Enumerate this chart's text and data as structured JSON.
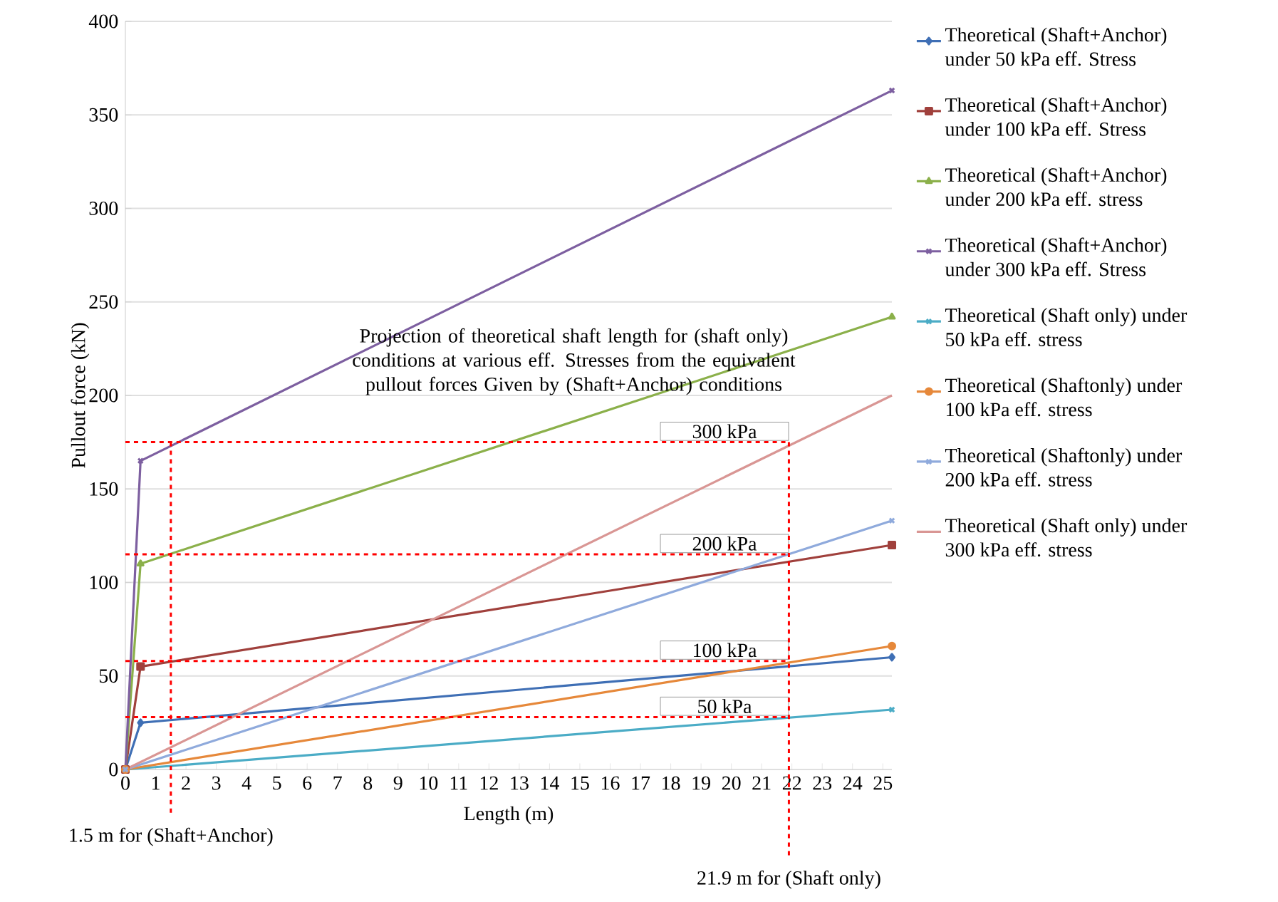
{
  "chart_data": {
    "type": "line",
    "xlabel": "Length (m)",
    "ylabel": "Pullout force (kN)",
    "xlim": [
      0,
      25.3
    ],
    "ylim": [
      0,
      400
    ],
    "xticks": [
      0,
      1,
      2,
      3,
      4,
      5,
      6,
      7,
      8,
      9,
      10,
      11,
      12,
      13,
      14,
      15,
      16,
      17,
      18,
      19,
      20,
      21,
      22,
      23,
      24,
      25
    ],
    "yticks": [
      0,
      50,
      100,
      150,
      200,
      250,
      300,
      350,
      400
    ],
    "grid": "y",
    "legend": "right",
    "line_style": "solid",
    "series": [
      {
        "name": "Theoretical (Shaft+Anchor) under 50 kPa eff. Stress",
        "color": "#3f6fb5",
        "marker": "diamond",
        "x": [
          0,
          0.5,
          25.3
        ],
        "values": [
          0,
          25,
          60
        ]
      },
      {
        "name": "Theoretical (Shaft+Anchor) under 100 kPa eff. Stress",
        "color": "#a0403c",
        "marker": "square",
        "x": [
          0,
          0.5,
          25.3
        ],
        "values": [
          0,
          55,
          120
        ]
      },
      {
        "name": "Theoretical (Shaft+Anchor) under 200 kPa eff. stress",
        "color": "#8bb04a",
        "marker": "triangle",
        "x": [
          0,
          0.5,
          25.3
        ],
        "values": [
          0,
          110,
          242
        ]
      },
      {
        "name": "Theoretical (Shaft+Anchor) under 300 kPa eff. Stress",
        "color": "#7d5fa0",
        "marker": "cross",
        "x": [
          0,
          0.5,
          25.3
        ],
        "values": [
          0,
          165,
          363
        ]
      },
      {
        "name": "Theoretical (Shaft only) under 50 kPa eff. stress",
        "color": "#4bacc6",
        "marker": "cross",
        "x": [
          0,
          25.3
        ],
        "values": [
          0,
          32
        ]
      },
      {
        "name": "Theoretical (Shaftonly) under 100 kPa eff. stress",
        "color": "#e6883a",
        "marker": "circle",
        "x": [
          0,
          25.3
        ],
        "values": [
          0,
          66
        ]
      },
      {
        "name": "Theoretical (Shaftonly) under 200 kPa eff. stress",
        "color": "#8faadc",
        "marker": "cross",
        "x": [
          0,
          25.3
        ],
        "values": [
          0,
          133
        ]
      },
      {
        "name": "Theoretical (Shaft only) under 300 kPa eff. stress",
        "color": "#d99694",
        "marker": "none",
        "x": [
          0,
          25.3
        ],
        "values": [
          0,
          200
        ]
      }
    ],
    "ref_lines": [
      {
        "axis": "y",
        "value": 28,
        "label": "50 kPa",
        "color": "#ff0000",
        "line_style": "dashed"
      },
      {
        "axis": "y",
        "value": 58,
        "label": "100 kPa",
        "color": "#ff0000",
        "line_style": "dashed"
      },
      {
        "axis": "y",
        "value": 115,
        "label": "200 kPa",
        "color": "#ff0000",
        "line_style": "dashed"
      },
      {
        "axis": "y",
        "value": 175,
        "label": "300 kPa",
        "color": "#ff0000",
        "line_style": "dashed"
      },
      {
        "axis": "x",
        "value": 1.5,
        "label": "1.5 m for (Shaft+Anchor)",
        "color": "#ff0000",
        "line_style": "dashed"
      },
      {
        "axis": "x",
        "value": 21.9,
        "label": "21.9 m for (Shaft only)",
        "color": "#ff0000",
        "line_style": "dashed"
      }
    ],
    "annotations": [
      "Projection of  theoretical shaft length for (shaft only) conditions at various eff. Stresses from the equivalent pullout forces Given by (Shaft+Anchor) conditions"
    ]
  }
}
